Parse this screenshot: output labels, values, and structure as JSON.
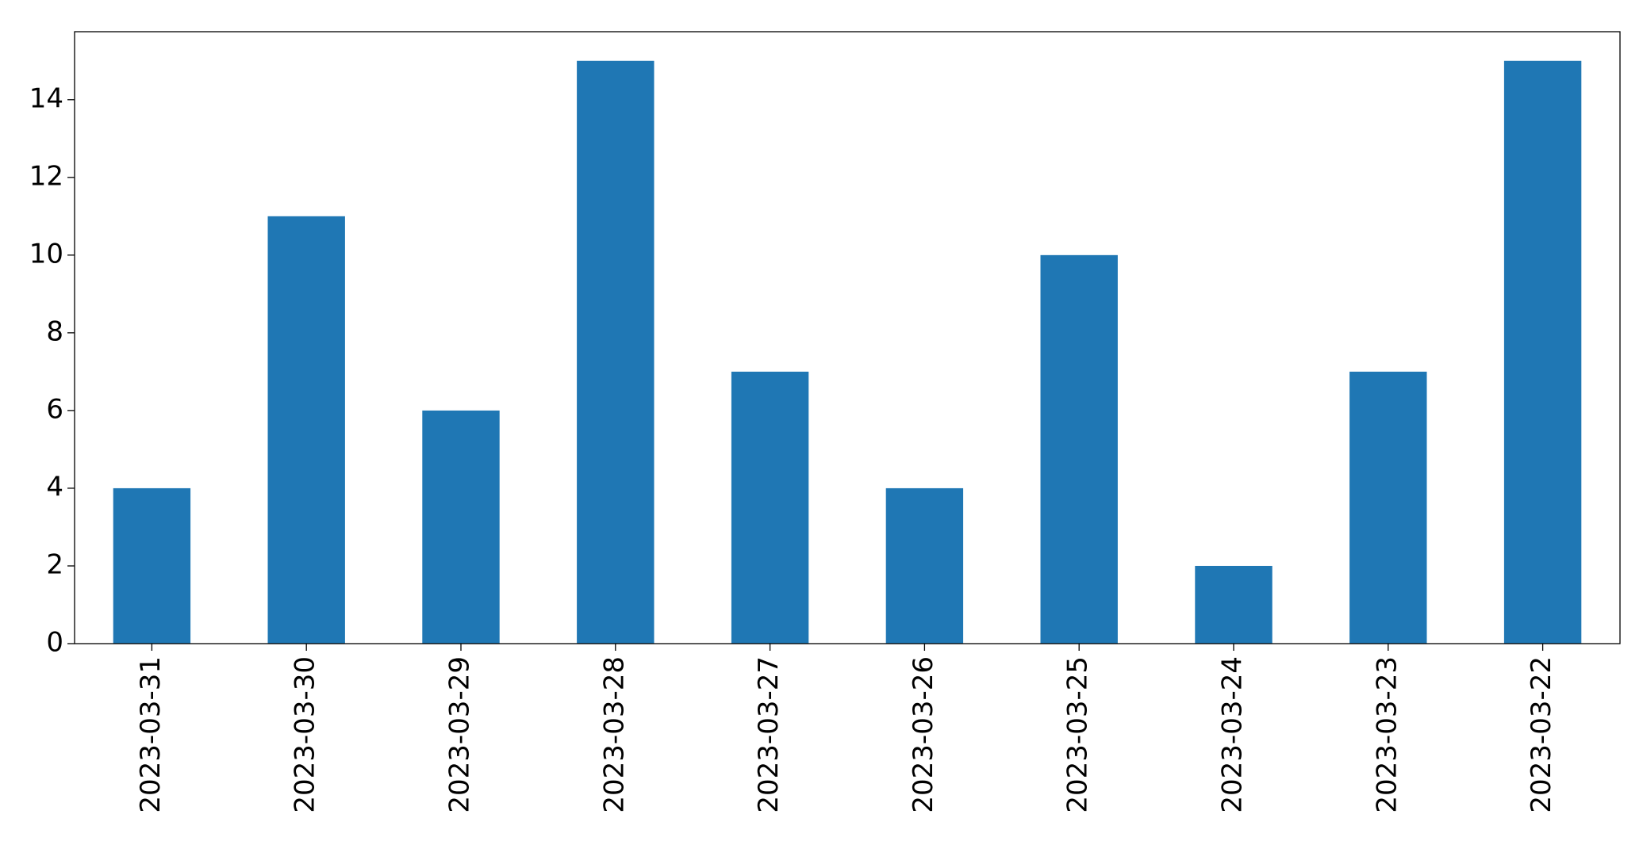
{
  "chart_data": {
    "type": "bar",
    "categories": [
      "2023-03-31",
      "2023-03-30",
      "2023-03-29",
      "2023-03-28",
      "2023-03-27",
      "2023-03-26",
      "2023-03-25",
      "2023-03-24",
      "2023-03-23",
      "2023-03-22"
    ],
    "values": [
      4,
      11,
      6,
      15,
      7,
      4,
      10,
      2,
      7,
      15
    ],
    "color": "#1f77b4",
    "ylim": [
      0,
      15.75
    ],
    "yticks": [
      0,
      2,
      4,
      6,
      8,
      10,
      12,
      14
    ],
    "grid": false
  }
}
